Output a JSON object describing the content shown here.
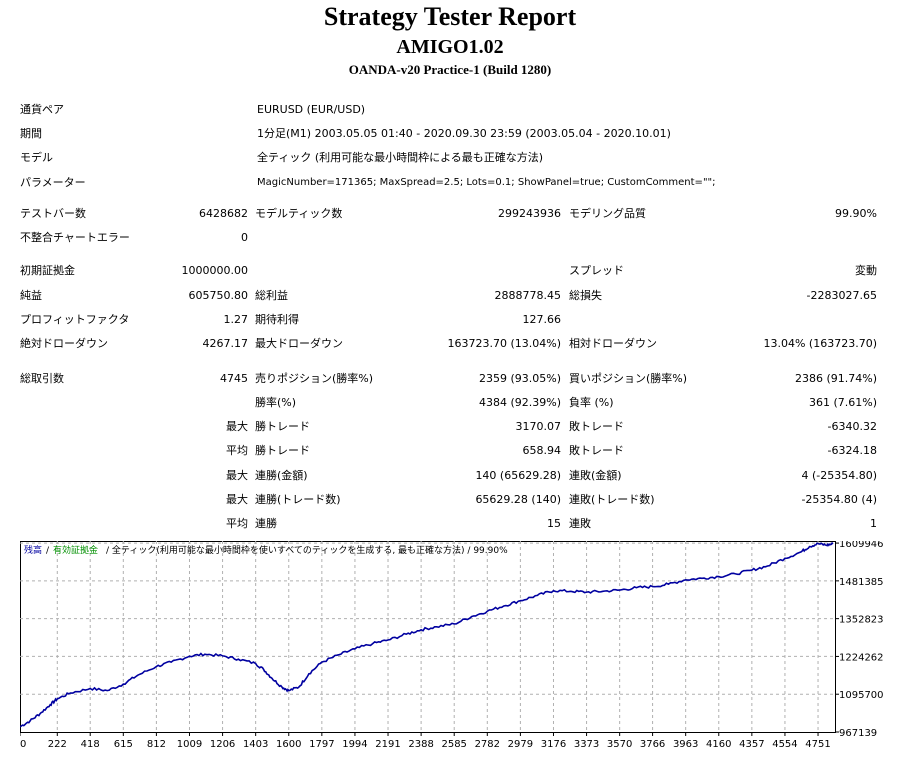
{
  "header": {
    "title": "Strategy Tester Report",
    "ea_name": "AMIGO1.02",
    "server": "OANDA-v20 Practice-1 (Build 1280)"
  },
  "settings": {
    "pair_label": "通貨ペア",
    "pair_value": "EURUSD (EUR/USD)",
    "period_label": "期間",
    "period_value": "1分足(M1) 2003.05.05 01:40 - 2020.09.30 23:59 (2003.05.04 - 2020.10.01)",
    "model_label": "モデル",
    "model_value": "全ティック (利用可能な最小時間枠による最も正確な方法)",
    "params_label": "パラメーター",
    "params_value": "MagicNumber=171365; MaxSpread=2.5; Lots=0.1; ShowPanel=true; CustomComment=\"\";"
  },
  "stats": {
    "bars_label": "テストバー数",
    "bars_value": "6428682",
    "ticks_label": "モデルティック数",
    "ticks_value": "299243936",
    "quality_label": "モデリング品質",
    "quality_value": "99.90%",
    "mismatch_label": "不整合チャートエラー",
    "mismatch_value": "0",
    "deposit_label": "初期証拠金",
    "deposit_value": "1000000.00",
    "spread_label": "スプレッド",
    "spread_value": "変動",
    "net_label": "純益",
    "net_value": "605750.80",
    "gross_profit_label": "総利益",
    "gross_profit_value": "2888778.45",
    "gross_loss_label": "総損失",
    "gross_loss_value": "-2283027.65",
    "pf_label": "プロフィットファクタ",
    "pf_value": "1.27",
    "expected_label": "期待利得",
    "expected_value": "127.66",
    "abs_dd_label": "絶対ドローダウン",
    "abs_dd_value": "4267.17",
    "max_dd_label": "最大ドローダウン",
    "max_dd_value": "163723.70 (13.04%)",
    "rel_dd_label": "相対ドローダウン",
    "rel_dd_value": "13.04% (163723.70)",
    "trades_label": "総取引数",
    "trades_value": "4745",
    "short_label": "売りポジション(勝率%)",
    "short_value": "2359 (93.05%)",
    "long_label": "買いポジション(勝率%)",
    "long_value": "2386 (91.74%)",
    "win_label": "勝率(%)",
    "win_value": "4384 (92.39%)",
    "loss_label": "負率 (%)",
    "loss_value": "361 (7.61%)",
    "max_label": "最大",
    "avg_label": "平均",
    "largest_win_label": "勝トレード",
    "largest_win_value": "3170.07",
    "largest_loss_label": "敗トレード",
    "largest_loss_value": "-6340.32",
    "avg_win_label": "勝トレード",
    "avg_win_value": "658.94",
    "avg_loss_label": "敗トレード",
    "avg_loss_value": "-6324.18",
    "max_consec_wins_label": "連勝(金額)",
    "max_consec_wins_value": "140 (65629.28)",
    "max_consec_losses_label": "連敗(金額)",
    "max_consec_losses_value": "4 (-25354.80)",
    "max_consec_profit_label": "連勝(トレード数)",
    "max_consec_profit_value": "65629.28 (140)",
    "max_consec_loss_label": "連敗(トレード数)",
    "max_consec_loss_value": "-25354.80 (4)",
    "avg_consec_wins_label": "連勝",
    "avg_consec_wins_value": "15",
    "avg_consec_losses_label": "連敗",
    "avg_consec_losses_value": "1"
  },
  "chart_data": {
    "type": "line",
    "legend": {
      "balance": "残高",
      "margin": "有効証拠金",
      "model": "/ 全ティック(利用可能な最小時間枠を使いすべてのティックを生成する, 最も正確な方法) / 99.90%"
    },
    "x_ticks": [
      0,
      222,
      418,
      615,
      812,
      1009,
      1206,
      1403,
      1600,
      1797,
      1994,
      2191,
      2388,
      2585,
      2782,
      2979,
      3176,
      3373,
      3570,
      3766,
      3963,
      4160,
      4357,
      4554,
      4751
    ],
    "y_ticks": [
      967139,
      1095700,
      1224262,
      1352823,
      1481385,
      1609946
    ],
    "xlim": [
      0,
      4852
    ],
    "ylim": [
      967139,
      1617000
    ],
    "series": [
      {
        "color": "#0000a0",
        "x": [
          0,
          60,
          120,
          180,
          222,
          300,
          418,
          520,
          615,
          700,
          812,
          900,
          1009,
          1100,
          1206,
          1300,
          1403,
          1450,
          1500,
          1560,
          1600,
          1660,
          1720,
          1797,
          1900,
          1994,
          2100,
          2191,
          2300,
          2388,
          2480,
          2585,
          2690,
          2782,
          2880,
          2979,
          3080,
          3176,
          3280,
          3373,
          3470,
          3570,
          3670,
          3766,
          3860,
          3963,
          4060,
          4160,
          4260,
          4357,
          4450,
          4554,
          4650,
          4700,
          4751,
          4800,
          4840
        ],
        "y": [
          985000,
          1005000,
          1030000,
          1060000,
          1080000,
          1100000,
          1115000,
          1108000,
          1130000,
          1160000,
          1190000,
          1205000,
          1225000,
          1232000,
          1226000,
          1215000,
          1200000,
          1180000,
          1150000,
          1120000,
          1108000,
          1120000,
          1165000,
          1205000,
          1230000,
          1250000,
          1268000,
          1280000,
          1300000,
          1315000,
          1325000,
          1335000,
          1360000,
          1378000,
          1396000,
          1414000,
          1432000,
          1448000,
          1446000,
          1443000,
          1446000,
          1450000,
          1458000,
          1462000,
          1470000,
          1485000,
          1490000,
          1496000,
          1505000,
          1518000,
          1532000,
          1558000,
          1580000,
          1598000,
          1608000,
          1603000,
          1607000
        ]
      }
    ]
  }
}
